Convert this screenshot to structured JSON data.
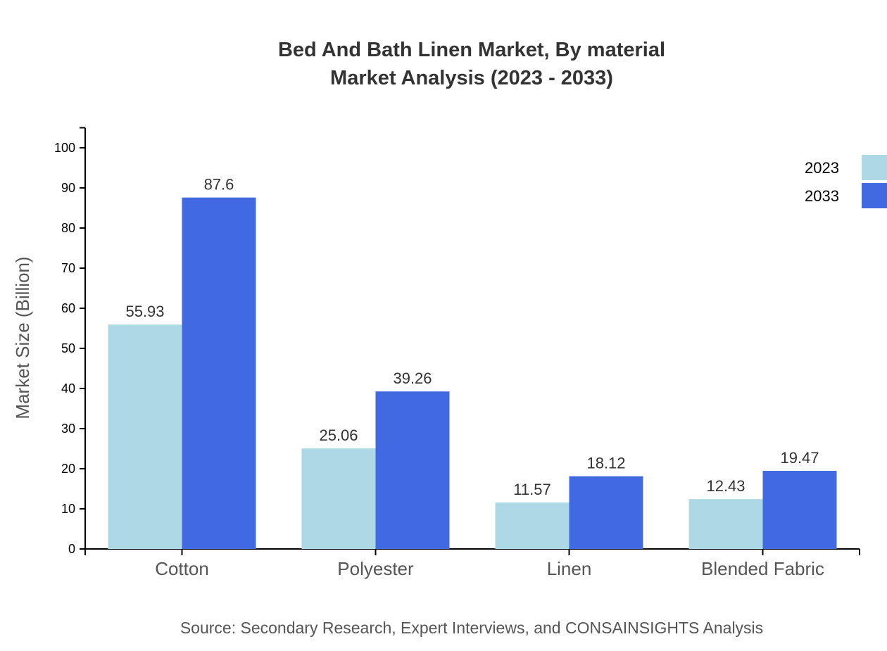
{
  "chart_data": {
    "type": "bar",
    "title": "Bed And Bath Linen Market, By material",
    "subtitle": "Market Analysis (2023 - 2033)",
    "xlabel": "",
    "ylabel": "Market Size (Billion)",
    "ylim": [
      0,
      105
    ],
    "yticks": [
      0,
      10,
      20,
      30,
      40,
      50,
      60,
      70,
      80,
      90,
      100
    ],
    "categories": [
      "Cotton",
      "Polyester",
      "Linen",
      "Blended Fabric"
    ],
    "series": [
      {
        "name": "2023",
        "color": "#add8e6",
        "values": [
          55.93,
          25.06,
          11.57,
          12.43
        ]
      },
      {
        "name": "2033",
        "color": "#4169e1",
        "values": [
          87.6,
          39.26,
          18.12,
          19.47
        ]
      }
    ],
    "grid": false,
    "legend": "top-right",
    "source": "Source: Secondary Research, Expert Interviews, and CONSAINSIGHTS Analysis"
  }
}
